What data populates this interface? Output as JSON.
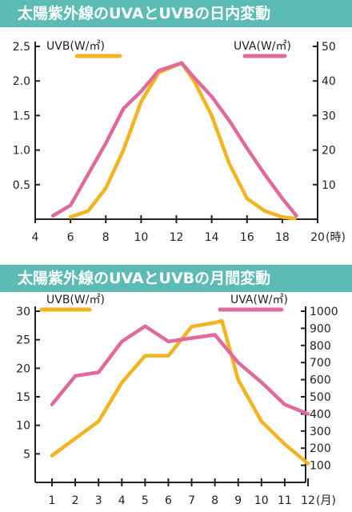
{
  "colors": {
    "banner_bg": "#5cbcb5",
    "banner_text": "#ffffff",
    "uvb": "#f4b321",
    "uva": "#e06a9b",
    "axis": "#222222"
  },
  "chart_data": [
    {
      "type": "line",
      "title": "太陽紫外線のUVAとUVBの日内変動",
      "x_unit": "(時)",
      "xlim": [
        4,
        20
      ],
      "x_ticks": [
        "4",
        "6",
        "8",
        "10",
        "12",
        "14",
        "16",
        "18",
        "20"
      ],
      "y_left_label": "UVB(W/㎡)",
      "y_right_label": "UVA(W/㎡)",
      "ylim_left": [
        0,
        2.5
      ],
      "ylim_right": [
        0,
        50
      ],
      "y_left_ticks": [
        "0.5",
        "1.0",
        "1.5",
        "2.0",
        "2.5"
      ],
      "y_right_ticks": [
        "10",
        "20",
        "30",
        "40",
        "50"
      ],
      "grid": false,
      "legend": [
        "top-left",
        "top-right"
      ],
      "series": [
        {
          "name": "UVB(W/㎡)",
          "axis": "left",
          "color": "#f4b321",
          "x": [
            6,
            7,
            8,
            9,
            10,
            11,
            12.3,
            13,
            14,
            15,
            16,
            17,
            18,
            18.7
          ],
          "y": [
            0.03,
            0.12,
            0.45,
            1.0,
            1.7,
            2.12,
            2.26,
            2.0,
            1.5,
            0.8,
            0.3,
            0.12,
            0.03,
            0.01
          ]
        },
        {
          "name": "UVA(W/㎡)",
          "axis": "right",
          "color": "#e06a9b",
          "x": [
            5,
            6,
            7,
            8,
            9,
            10,
            11,
            12.3,
            13,
            14,
            15,
            16,
            17,
            18,
            18.8
          ],
          "y": [
            1,
            4,
            13,
            22,
            32,
            37,
            43,
            45.2,
            41,
            35.5,
            28.5,
            20.5,
            13,
            6,
            1
          ]
        }
      ]
    },
    {
      "type": "line",
      "title": "太陽紫外線のUVAとUVBの月間変動",
      "x_unit": "(月)",
      "x": [
        1,
        2,
        3,
        4,
        5,
        6,
        7,
        8,
        9,
        10,
        11,
        12
      ],
      "x_ticks": [
        "1",
        "2",
        "3",
        "4",
        "5",
        "6",
        "7",
        "8",
        "9",
        "10",
        "11",
        "12"
      ],
      "y_left_label": "UVB(W/㎡)",
      "y_right_label": "UVA(W/㎡)",
      "ylim_left": [
        0,
        30
      ],
      "ylim_right": [
        0,
        1000
      ],
      "y_left_ticks": [
        "5",
        "10",
        "15",
        "20",
        "25",
        "30"
      ],
      "y_right_ticks": [
        "100",
        "200",
        "300",
        "400",
        "500",
        "600",
        "700",
        "800",
        "900",
        "1000"
      ],
      "grid": false,
      "legend": [
        "top-left",
        "top-right"
      ],
      "series": [
        {
          "name": "UVB(W/㎡)",
          "axis": "left",
          "color": "#f4b321",
          "x": [
            1,
            2,
            3,
            4,
            5,
            6,
            7,
            8,
            8.3,
            9,
            10,
            11,
            12
          ],
          "y": [
            4.7,
            7.7,
            10.7,
            17.5,
            22.2,
            22.2,
            27.3,
            28,
            28.3,
            18,
            10.7,
            6.7,
            3.3
          ]
        },
        {
          "name": "UVA(W/㎡)",
          "axis": "right",
          "color": "#e06a9b",
          "x": [
            1,
            2,
            3,
            4,
            5,
            6,
            7,
            8,
            9,
            10,
            11,
            12
          ],
          "y": [
            455,
            622,
            643,
            823,
            912,
            823,
            843,
            862,
            700,
            585,
            455,
            400
          ]
        }
      ]
    }
  ]
}
